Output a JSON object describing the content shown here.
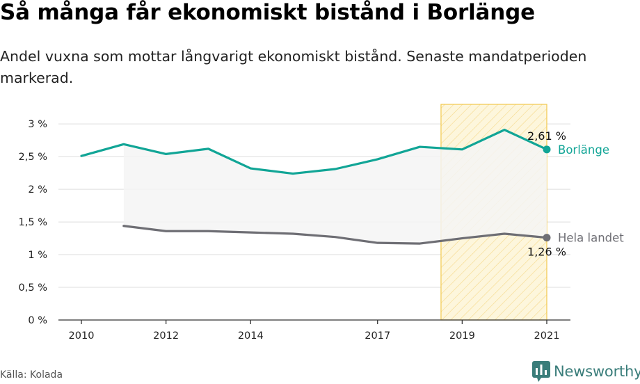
{
  "title": "Så många får ekonomiskt bistånd i Borlänge",
  "subtitle": "Andel vuxna som mottar långvarigt ekonomiskt bistånd. Senaste mandatperioden markerad.",
  "source": "Källa: Kolada",
  "brand": "Newsworthy",
  "colors": {
    "borlange": "#11a596",
    "riket": "#6e6e74",
    "highlight_stroke": "#f2c94c",
    "highlight_fill": "#fdf6dc",
    "band_fill": "#f5f5f5",
    "grid": "#dddddd",
    "brand": "#3a7d7a"
  },
  "chart_data": {
    "type": "line",
    "x_tick_labels": [
      "2010",
      "2012",
      "2014",
      "2017",
      "2019",
      "2021"
    ],
    "y_tick_labels": [
      "0 %",
      "0,5 %",
      "1 %",
      "1,5 %",
      "2 %",
      "2,5 %",
      "3 %"
    ],
    "ylim": [
      0,
      3.3
    ],
    "highlight_period": [
      2018.5,
      2021
    ],
    "series": [
      {
        "name": "Borlänge",
        "x": [
          2010,
          2011,
          2012,
          2013,
          2014,
          2015,
          2016,
          2017,
          2018,
          2019,
          2020,
          2021
        ],
        "values": [
          2.51,
          2.69,
          2.54,
          2.62,
          2.32,
          2.24,
          2.31,
          2.46,
          2.65,
          2.61,
          2.91,
          2.61
        ],
        "end_label": "2,61 %"
      },
      {
        "name": "Hela landet",
        "x": [
          2011,
          2012,
          2013,
          2014,
          2015,
          2016,
          2017,
          2018,
          2019,
          2020,
          2021
        ],
        "values": [
          1.44,
          1.36,
          1.36,
          1.34,
          1.32,
          1.27,
          1.18,
          1.17,
          1.25,
          1.32,
          1.26
        ],
        "end_label": "1,26 %"
      }
    ]
  }
}
